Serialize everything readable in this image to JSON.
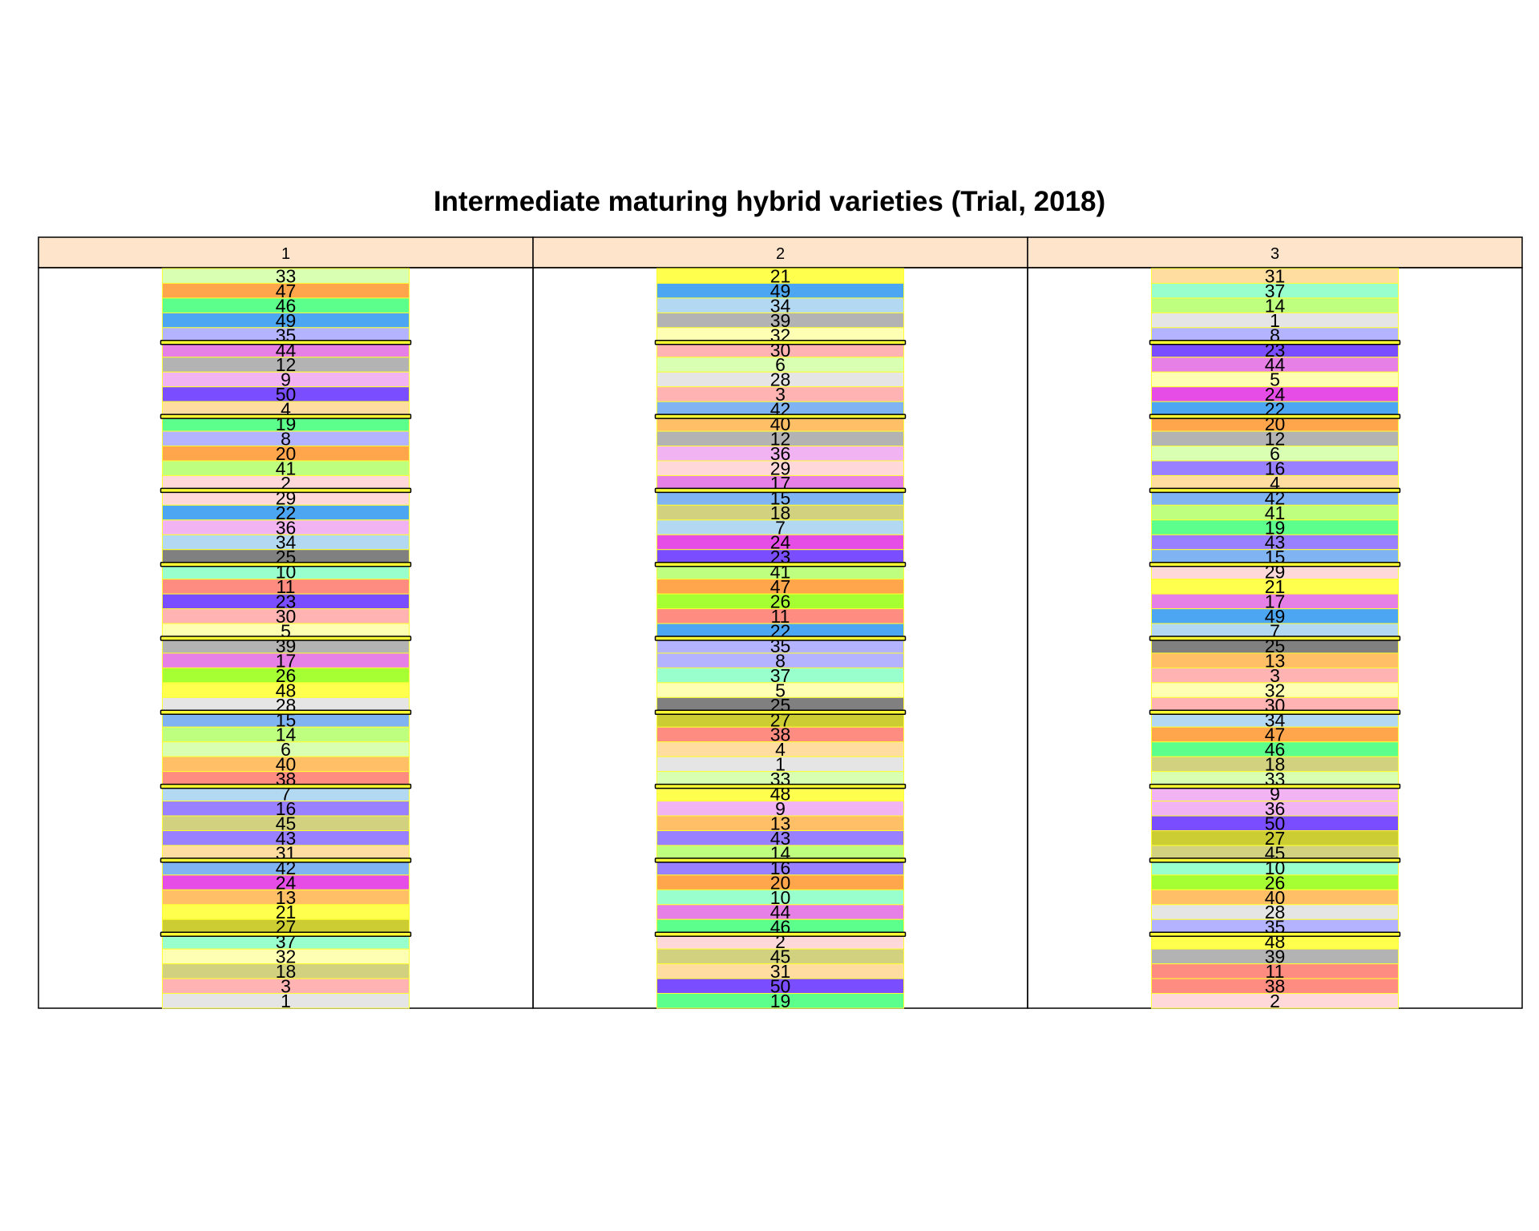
{
  "title": "Intermediate maturing hybrid varieties (Trial, 2018)",
  "blocks": [
    {
      "label": "1",
      "plots": [
        "33",
        "47",
        "46",
        "49",
        "35",
        "44",
        "12",
        "9",
        "50",
        "4",
        "19",
        "8",
        "20",
        "41",
        "2",
        "29",
        "22",
        "36",
        "34",
        "25",
        "10",
        "11",
        "23",
        "30",
        "5",
        "39",
        "17",
        "26",
        "48",
        "28",
        "15",
        "14",
        "6",
        "40",
        "38",
        "7",
        "16",
        "45",
        "43",
        "31",
        "42",
        "24",
        "13",
        "21",
        "27",
        "37",
        "32",
        "18",
        "3",
        "1"
      ]
    },
    {
      "label": "2",
      "plots": [
        "21",
        "49",
        "34",
        "39",
        "32",
        "30",
        "6",
        "28",
        "3",
        "42",
        "40",
        "12",
        "36",
        "29",
        "17",
        "15",
        "18",
        "7",
        "24",
        "23",
        "41",
        "47",
        "26",
        "11",
        "22",
        "35",
        "8",
        "37",
        "5",
        "25",
        "27",
        "38",
        "4",
        "1",
        "33",
        "48",
        "9",
        "13",
        "43",
        "14",
        "16",
        "20",
        "10",
        "44",
        "46",
        "2",
        "45",
        "31",
        "50",
        "19"
      ]
    },
    {
      "label": "3",
      "plots": [
        "31",
        "37",
        "14",
        "1",
        "8",
        "23",
        "44",
        "5",
        "24",
        "22",
        "20",
        "12",
        "6",
        "16",
        "4",
        "42",
        "41",
        "19",
        "43",
        "15",
        "29",
        "21",
        "17",
        "49",
        "7",
        "25",
        "13",
        "3",
        "32",
        "30",
        "34",
        "47",
        "46",
        "18",
        "33",
        "9",
        "36",
        "50",
        "27",
        "45",
        "10",
        "26",
        "40",
        "28",
        "35",
        "48",
        "39",
        "11",
        "38",
        "2"
      ]
    }
  ],
  "colors": {
    "strip_fill": "#FFE4CC",
    "divider": "#FFFF33",
    "outline": "#000000",
    "varieties": {
      "1": "#E5E5E5",
      "2": "#FFD9D9",
      "3": "#FFB3B3",
      "4": "#FFDDA0",
      "5": "#FFFFB3",
      "6": "#D9FFB3",
      "7": "#B3D9F2",
      "8": "#B3B3FF",
      "9": "#F2B3F2",
      "10": "#99FFCC",
      "11": "#FF8C80",
      "12": "#B3B3B3",
      "13": "#FFBF66",
      "14": "#BFFF80",
      "15": "#80B3F2",
      "16": "#9980FF",
      "17": "#E680E6",
      "18": "#D1D180",
      "19": "#5CFF8C",
      "20": "#FFA64D",
      "21": "#FFFF4D",
      "22": "#4DA6F2",
      "23": "#7A4DFF",
      "24": "#E64DE6",
      "25": "#808080",
      "26": "#A6FF33",
      "27": "#CCCC33",
      "28": "#E5E5E5",
      "29": "#FFD9D9",
      "30": "#FFB3B3",
      "31": "#FFDDA0",
      "32": "#FFFFB3",
      "33": "#D9FFB3",
      "34": "#B3D9F2",
      "35": "#B3B3FF",
      "36": "#F2B3F2",
      "37": "#99FFCC",
      "38": "#FF8C80",
      "39": "#B3B3B3",
      "40": "#FFBF66",
      "41": "#BFFF80",
      "42": "#80B3F2",
      "43": "#9980FF",
      "44": "#E680E6",
      "45": "#D1D180",
      "46": "#5CFF8C",
      "47": "#FFA64D",
      "48": "#FFFF4D",
      "49": "#4DA6F2",
      "50": "#7A4DFF"
    }
  }
}
